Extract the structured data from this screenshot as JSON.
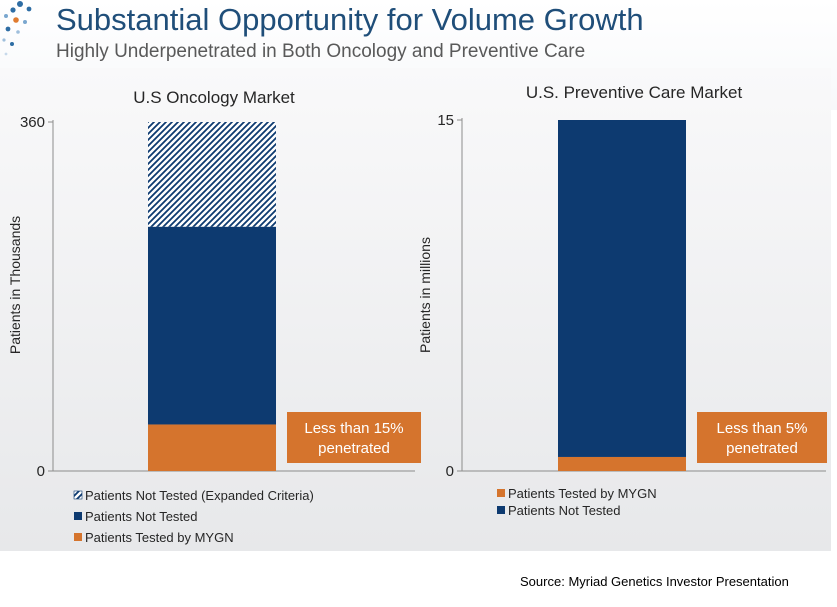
{
  "header": {
    "title": "Substantial Opportunity for Volume Growth",
    "subtitle": "Highly Underpenetrated in Both Oncology and Preventive Care"
  },
  "footer": {
    "source_label": "Source:",
    "source_text": "Myriad Genetics Investor Presentation"
  },
  "colors": {
    "navy": "#0d3a70",
    "orange": "#d5742d",
    "title_blue": "#1f4e79"
  },
  "chart_data": [
    {
      "type": "bar",
      "stacked": true,
      "title": "U.S Oncology Market",
      "ylabel": "Patients in Thousands",
      "ylim": [
        0,
        360
      ],
      "yticks": [
        "0",
        "360"
      ],
      "series": [
        {
          "name": "Patients Tested by MYGN",
          "values": [
            48
          ],
          "color": "#d5742d",
          "pattern": "solid"
        },
        {
          "name": "Patients Not Tested",
          "values": [
            204
          ],
          "color": "#0d3a70",
          "pattern": "solid"
        },
        {
          "name": "Patients Not Tested (Expanded Criteria)",
          "values": [
            108
          ],
          "color": "#0d3a70",
          "pattern": "hatch"
        }
      ],
      "legend": [
        "Patients Not Tested (Expanded Criteria)",
        "Patients Not Tested",
        "Patients Tested by MYGN"
      ],
      "legend_position": "bottom-left",
      "annotation": {
        "line1": "Less than 15%",
        "line2": "penetrated"
      }
    },
    {
      "type": "bar",
      "stacked": true,
      "title": "U.S. Preventive Care Market",
      "ylabel": "Patients in millions",
      "ylim": [
        0,
        15
      ],
      "yticks": [
        "0",
        "15"
      ],
      "series": [
        {
          "name": "Patients Tested by MYGN",
          "values": [
            0.6
          ],
          "color": "#d5742d",
          "pattern": "solid"
        },
        {
          "name": "Patients Not Tested",
          "values": [
            14.4
          ],
          "color": "#0d3a70",
          "pattern": "solid"
        }
      ],
      "legend": [
        "Patients Tested by MYGN",
        "Patients Not Tested"
      ],
      "legend_position": "bottom-left",
      "annotation": {
        "line1": "Less than 5%",
        "line2": "penetrated"
      }
    }
  ]
}
